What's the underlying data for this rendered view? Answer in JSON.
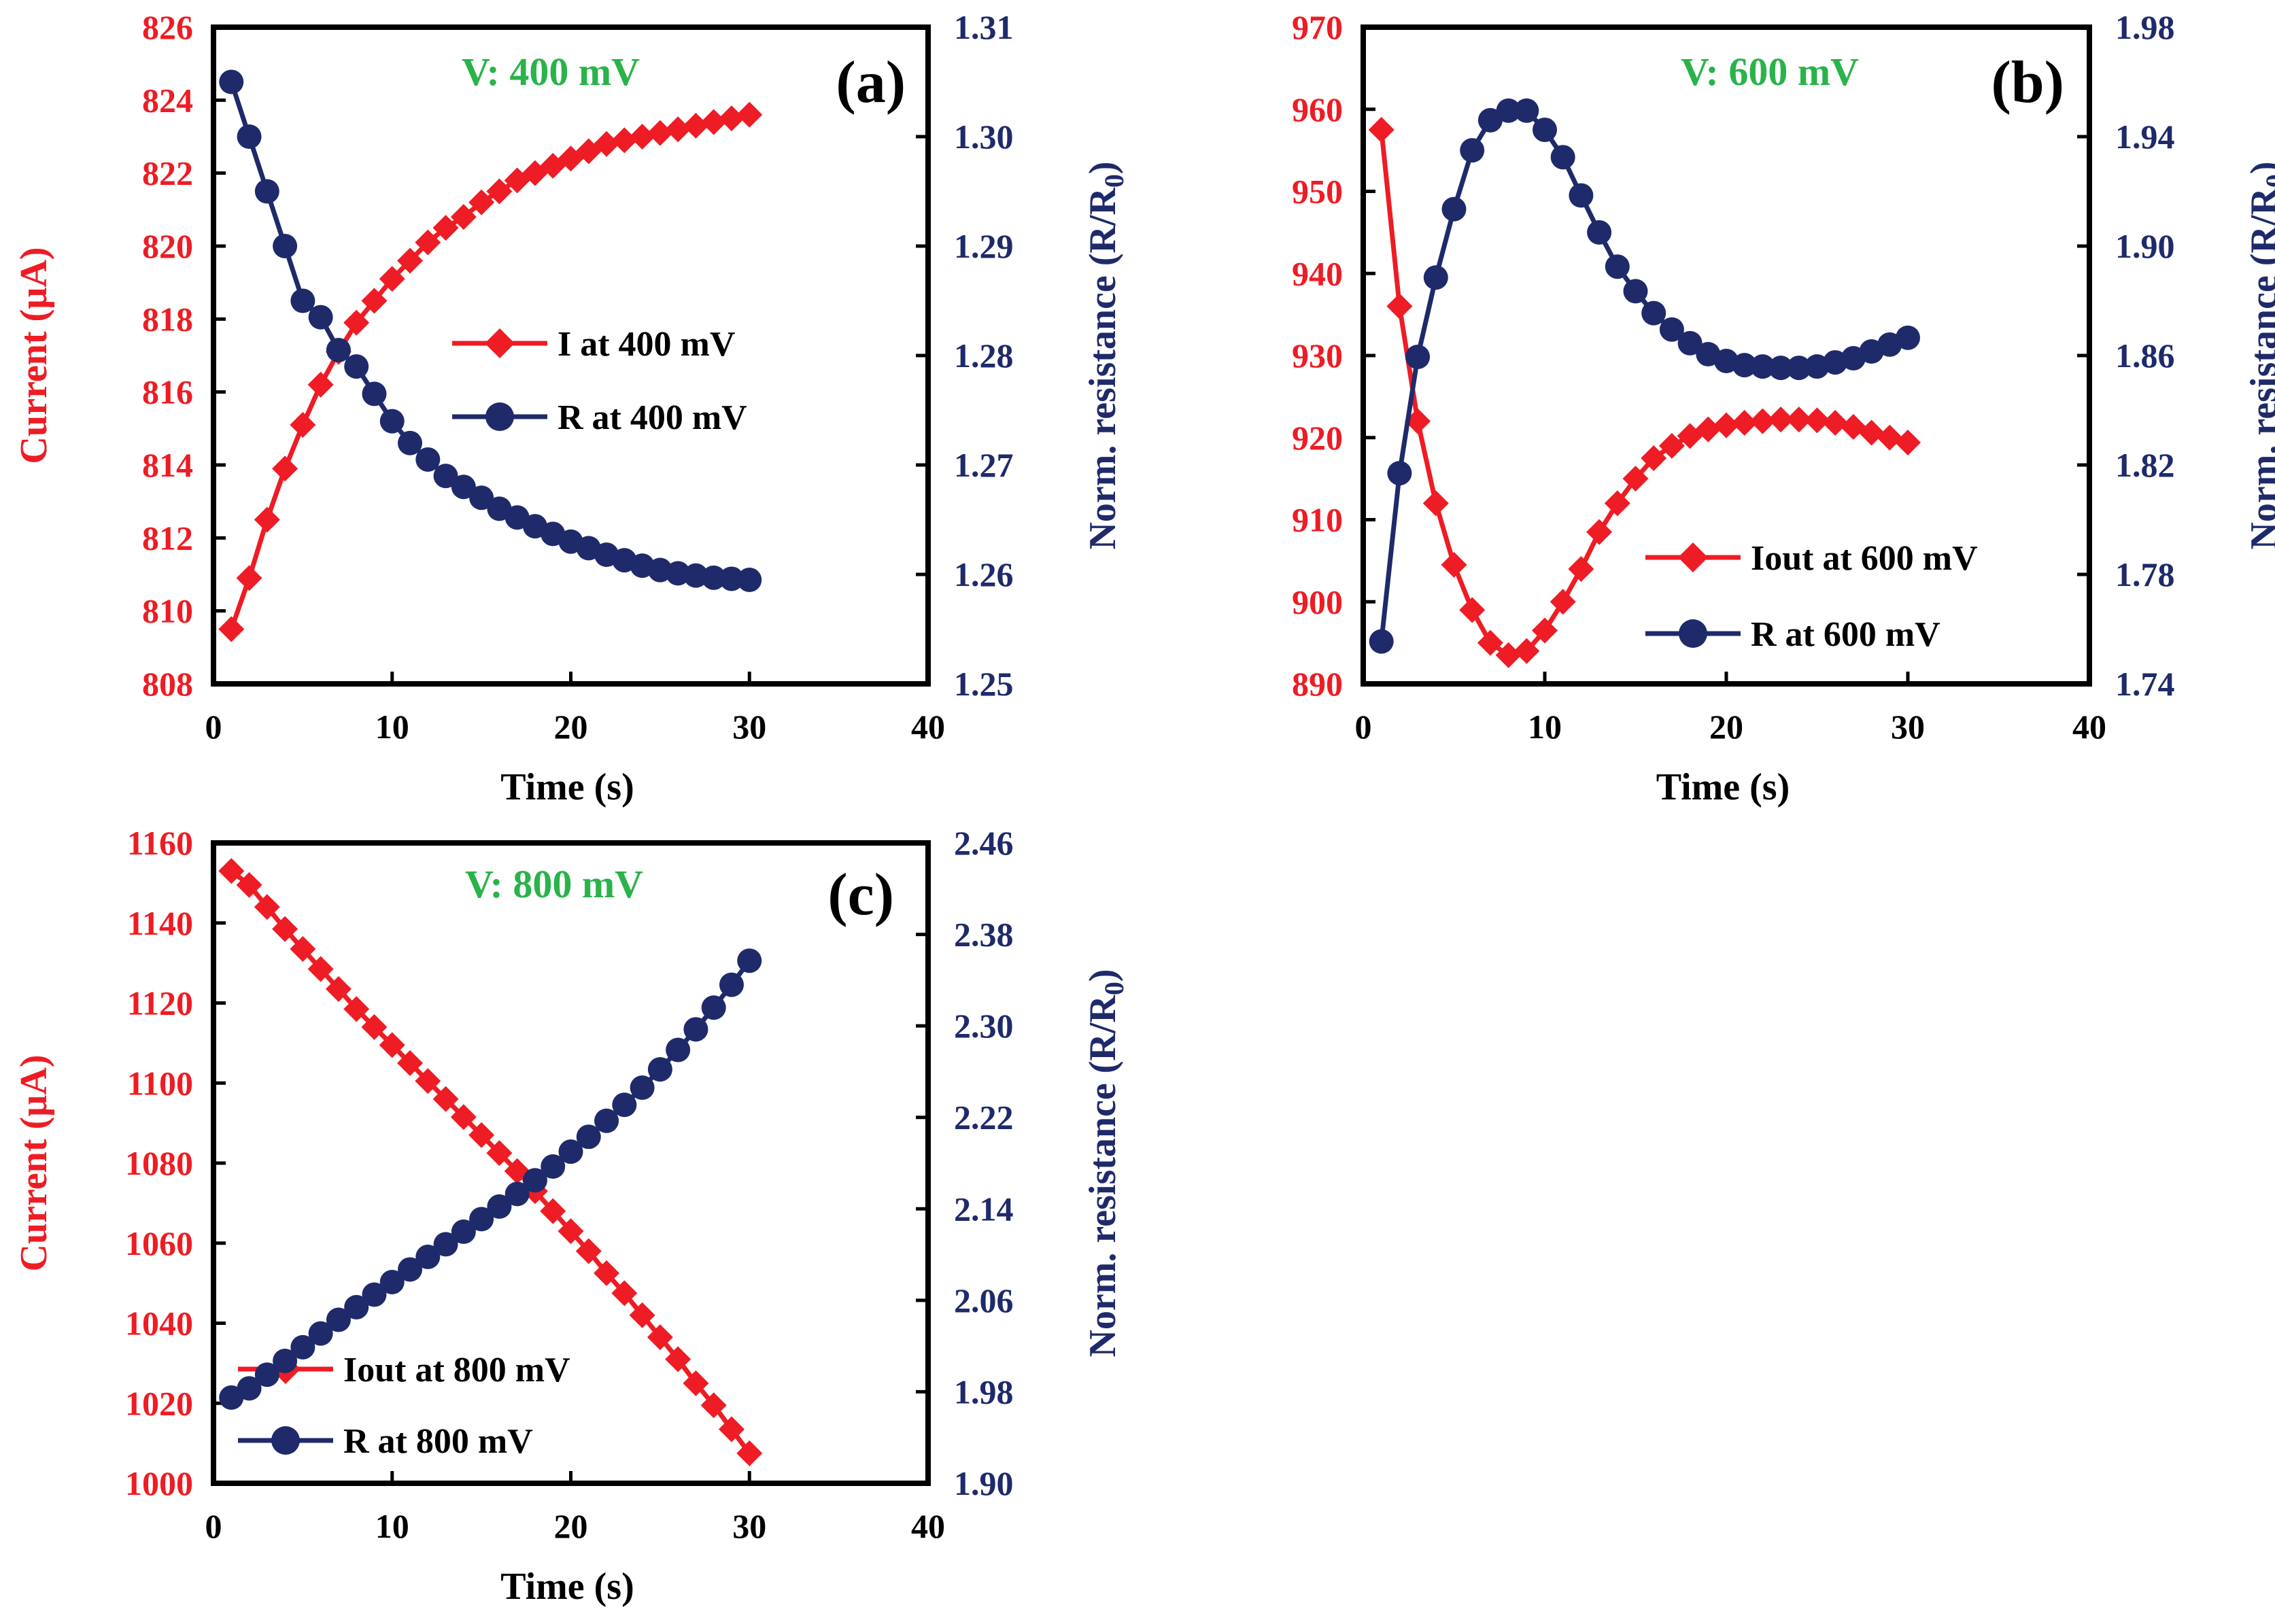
{
  "colors": {
    "current": "#ee1c24",
    "resistance": "#1f2a6b",
    "voltage_label": "#2ab34a",
    "axis": "#000000"
  },
  "chart_data": [
    {
      "type": "line",
      "panel_label": "(a)",
      "voltage_label": "V: 400 mV",
      "xlabel": "Time (s)",
      "ylabel_left": "Current (µA)",
      "ylabel_right_main": "Norm. resistance (R/R",
      "ylabel_right_sub": "0",
      "ylabel_right_close": ")",
      "xlim": [
        0,
        40
      ],
      "ylim_left": [
        808,
        826
      ],
      "ylim_right": [
        1.25,
        1.31
      ],
      "xticks": [
        "0",
        "10",
        "20",
        "30",
        "40"
      ],
      "yticks_left": [
        "808",
        "810",
        "812",
        "814",
        "816",
        "818",
        "820",
        "822",
        "824",
        "826"
      ],
      "yticks_right": [
        "1.25",
        "1.26",
        "1.27",
        "1.28",
        "1.29",
        "1.30",
        "1.31"
      ],
      "legend_position": "center-right",
      "series": [
        {
          "name": "I at 400 mV",
          "axis": "left",
          "marker": "diamond",
          "x": [
            1,
            2,
            3,
            4,
            5,
            6,
            7,
            8,
            9,
            10,
            11,
            12,
            13,
            14,
            15,
            16,
            17,
            18,
            19,
            20,
            21,
            22,
            23,
            24,
            25,
            26,
            27,
            28,
            29,
            30
          ],
          "values": [
            809.5,
            810.9,
            812.5,
            813.9,
            815.1,
            816.2,
            817.1,
            817.9,
            818.5,
            819.1,
            819.6,
            820.1,
            820.5,
            820.8,
            821.2,
            821.5,
            821.8,
            822.0,
            822.2,
            822.4,
            822.6,
            822.8,
            822.9,
            823.0,
            823.1,
            823.2,
            823.3,
            823.4,
            823.5,
            823.6
          ]
        },
        {
          "name": "R at 400 mV",
          "axis": "right",
          "marker": "circle",
          "x": [
            1,
            2,
            3,
            4,
            5,
            6,
            7,
            8,
            9,
            10,
            11,
            12,
            13,
            14,
            15,
            16,
            17,
            18,
            19,
            20,
            21,
            22,
            23,
            24,
            25,
            26,
            27,
            28,
            29,
            30
          ],
          "values": [
            1.305,
            1.3,
            1.295,
            1.29,
            1.285,
            1.2835,
            1.2805,
            1.279,
            1.2765,
            1.274,
            1.272,
            1.2705,
            1.269,
            1.268,
            1.267,
            1.266,
            1.2652,
            1.2644,
            1.2637,
            1.263,
            1.2624,
            1.2618,
            1.2613,
            1.2608,
            1.2604,
            1.2601,
            1.2599,
            1.2597,
            1.2596,
            1.2595
          ]
        }
      ]
    },
    {
      "type": "line",
      "panel_label": "(b)",
      "voltage_label": "V: 600 mV",
      "xlabel": "Time (s)",
      "ylabel_left": "Current (µA)",
      "ylabel_right_main": "Norm. resistance (R/R",
      "ylabel_right_sub": "0",
      "ylabel_right_close": ")",
      "xlim": [
        0,
        40
      ],
      "ylim_left": [
        890,
        970
      ],
      "ylim_right": [
        1.74,
        1.98
      ],
      "xticks": [
        "0",
        "10",
        "20",
        "30",
        "40"
      ],
      "yticks_left": [
        "890",
        "900",
        "910",
        "920",
        "930",
        "940",
        "950",
        "960",
        "970"
      ],
      "yticks_right": [
        "1.74",
        "1.78",
        "1.82",
        "1.86",
        "1.90",
        "1.94",
        "1.98"
      ],
      "legend_position": "bottom-right",
      "series": [
        {
          "name": "Iout at 600 mV",
          "axis": "left",
          "marker": "diamond",
          "x": [
            1,
            2,
            3,
            4,
            5,
            6,
            7,
            8,
            9,
            10,
            11,
            12,
            13,
            14,
            15,
            16,
            17,
            18,
            19,
            20,
            21,
            22,
            23,
            24,
            25,
            26,
            27,
            28,
            29,
            30
          ],
          "values": [
            957.5,
            936,
            922,
            912,
            904.5,
            899,
            895,
            893.5,
            894,
            896.5,
            900,
            904,
            908.5,
            912,
            915,
            917.5,
            919,
            920.2,
            921,
            921.5,
            921.8,
            922,
            922.2,
            922.2,
            922.1,
            921.8,
            921.3,
            920.6,
            920,
            919.4
          ]
        },
        {
          "name": "R at 600 mV",
          "axis": "right",
          "marker": "circle",
          "x": [
            1,
            2,
            3,
            4,
            5,
            6,
            7,
            8,
            9,
            10,
            11,
            12,
            13,
            14,
            15,
            16,
            17,
            18,
            19,
            20,
            21,
            22,
            23,
            24,
            25,
            26,
            27,
            28,
            29,
            30
          ],
          "values": [
            1.7555,
            1.817,
            1.8595,
            1.8885,
            1.9135,
            1.935,
            1.946,
            1.9495,
            1.9495,
            1.9425,
            1.9325,
            1.9185,
            1.905,
            1.8925,
            1.8835,
            1.8755,
            1.8695,
            1.8645,
            1.8605,
            1.858,
            1.8565,
            1.856,
            1.8555,
            1.8555,
            1.856,
            1.8575,
            1.859,
            1.8615,
            1.864,
            1.8665
          ]
        }
      ]
    },
    {
      "type": "line",
      "panel_label": "(c)",
      "voltage_label": "V: 800 mV",
      "xlabel": "Time (s)",
      "ylabel_left": "Current (µA)",
      "ylabel_right_main": "Norm. resistance (R/R",
      "ylabel_right_sub": "0",
      "ylabel_right_close": ")",
      "xlim": [
        0,
        40
      ],
      "ylim_left": [
        1000,
        1160
      ],
      "ylim_right": [
        1.9,
        2.46
      ],
      "xticks": [
        "0",
        "10",
        "20",
        "30",
        "40"
      ],
      "yticks_left": [
        "1000",
        "1020",
        "1040",
        "1060",
        "1080",
        "1100",
        "1120",
        "1140",
        "1160"
      ],
      "yticks_right": [
        "1.90",
        "1.98",
        "2.06",
        "2.14",
        "2.22",
        "2.30",
        "2.38",
        "2.46"
      ],
      "legend_position": "bottom-left",
      "series": [
        {
          "name": "Iout at 800 mV",
          "axis": "left",
          "marker": "diamond",
          "x": [
            1,
            2,
            3,
            4,
            5,
            6,
            7,
            8,
            9,
            10,
            11,
            12,
            13,
            14,
            15,
            16,
            17,
            18,
            19,
            20,
            21,
            22,
            23,
            24,
            25,
            26,
            27,
            28,
            29,
            30
          ],
          "values": [
            1153,
            1149.5,
            1144,
            1138.5,
            1133.5,
            1128.5,
            1123.5,
            1118.5,
            1114,
            1109.5,
            1105,
            1100.5,
            1096,
            1091.5,
            1087,
            1082.5,
            1078,
            1073,
            1068,
            1063,
            1058,
            1052.5,
            1047.5,
            1042,
            1036.5,
            1031,
            1025,
            1019.5,
            1013.5,
            1007.5
          ]
        },
        {
          "name": "R at 800 mV",
          "axis": "right",
          "marker": "circle",
          "x": [
            1,
            2,
            3,
            4,
            5,
            6,
            7,
            8,
            9,
            10,
            11,
            12,
            13,
            14,
            15,
            16,
            17,
            18,
            19,
            20,
            21,
            22,
            23,
            24,
            25,
            26,
            27,
            28,
            29,
            30
          ],
          "values": [
            1.975,
            1.983,
            1.995,
            2.007,
            2.019,
            2.031,
            2.043,
            2.054,
            2.065,
            2.076,
            2.087,
            2.098,
            2.109,
            2.12,
            2.131,
            2.142,
            2.153,
            2.165,
            2.177,
            2.19,
            2.203,
            2.217,
            2.231,
            2.246,
            2.262,
            2.279,
            2.297,
            2.316,
            2.336,
            2.357
          ]
        }
      ]
    }
  ]
}
